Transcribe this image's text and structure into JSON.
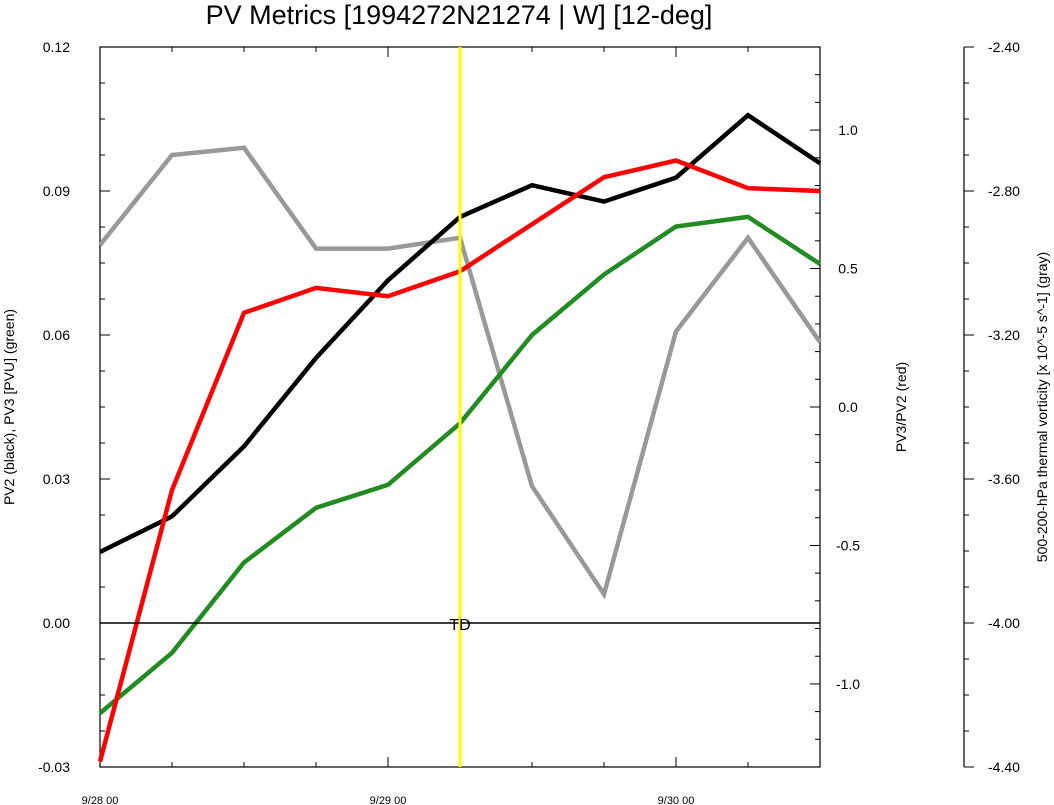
{
  "chart_data": {
    "type": "line",
    "title": "PV Metrics [1994272N21274 | W] [12-deg]",
    "x_tick_labels": [
      "9/28 00",
      "9/29 00",
      "9/30 00"
    ],
    "x_hours": [
      0,
      6,
      12,
      18,
      24,
      30,
      36,
      42,
      48,
      54,
      60
    ],
    "xlim": [
      0,
      60
    ],
    "left_axis": {
      "label": "PV2 (black), PV3 [PVU] (green)",
      "ylim": [
        -0.03,
        0.12
      ],
      "ticks": [
        "-0.03",
        "0.00",
        "0.03",
        "0.06",
        "0.09",
        "0.12"
      ]
    },
    "right_axis": {
      "label": "PV3/PV2 (red)",
      "ylim": [
        -1.3,
        1.3
      ],
      "ticks": [
        "-1.0",
        "-0.5",
        "0.0",
        "0.5",
        "1.0"
      ]
    },
    "far_right_axis": {
      "label": "500-200-hPa thermal vorticity [x 10^-5 s^-1] (gray)",
      "ylim": [
        -4.4,
        -2.4
      ],
      "ticks": [
        "-4.40",
        "-4.00",
        "-3.60",
        "-3.20",
        "-2.80",
        "-2.40"
      ]
    },
    "series": [
      {
        "name": "PV2",
        "color": "#000000",
        "axis": "left",
        "values": [
          0.0148,
          0.0222,
          0.0368,
          0.0552,
          0.0714,
          0.0846,
          0.0912,
          0.0878,
          0.0928,
          0.1058,
          0.0958
        ]
      },
      {
        "name": "PV3",
        "color": "#228b22",
        "axis": "left",
        "values": [
          -0.0188,
          -0.0062,
          0.0126,
          0.024,
          0.0288,
          0.0416,
          0.06,
          0.0726,
          0.0826,
          0.0846,
          0.0748
        ]
      },
      {
        "name": "PV3/PV2",
        "color": "#ff0000",
        "axis": "right",
        "values": [
          -1.28,
          -0.3,
          0.34,
          0.43,
          0.4,
          0.49,
          0.66,
          0.83,
          0.89,
          0.79,
          0.78
        ]
      },
      {
        "name": "thermal vorticity",
        "color": "#999999",
        "axis": "far_right",
        "values": [
          -2.95,
          -2.7,
          -2.68,
          -2.96,
          -2.96,
          -2.93,
          -3.62,
          -3.92,
          -3.19,
          -2.93,
          -3.22
        ]
      }
    ],
    "zero_line": 0.0,
    "vertical_marker": {
      "x_hour": 30,
      "color": "#ffff00",
      "label": "TD"
    },
    "grid": false
  }
}
